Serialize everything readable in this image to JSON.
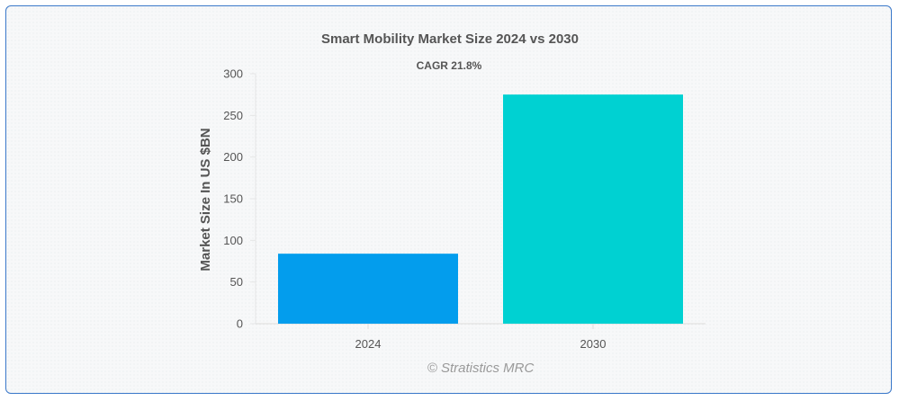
{
  "chart_data": {
    "type": "bar",
    "title": "Smart Mobility Market Size 2024 vs 2030",
    "annotation": "CAGR 21.8%",
    "xlabel": "",
    "ylabel": "Market Size In US $BN",
    "categories": [
      "2024",
      "2030"
    ],
    "values": [
      84,
      275
    ],
    "ylim": [
      0,
      300
    ],
    "yticks": [
      0,
      50,
      100,
      150,
      200,
      250,
      300
    ],
    "colors": [
      "#039ded",
      "#00d1d2"
    ],
    "grid": false,
    "legend": "none"
  },
  "credit": "© Stratistics MRC"
}
